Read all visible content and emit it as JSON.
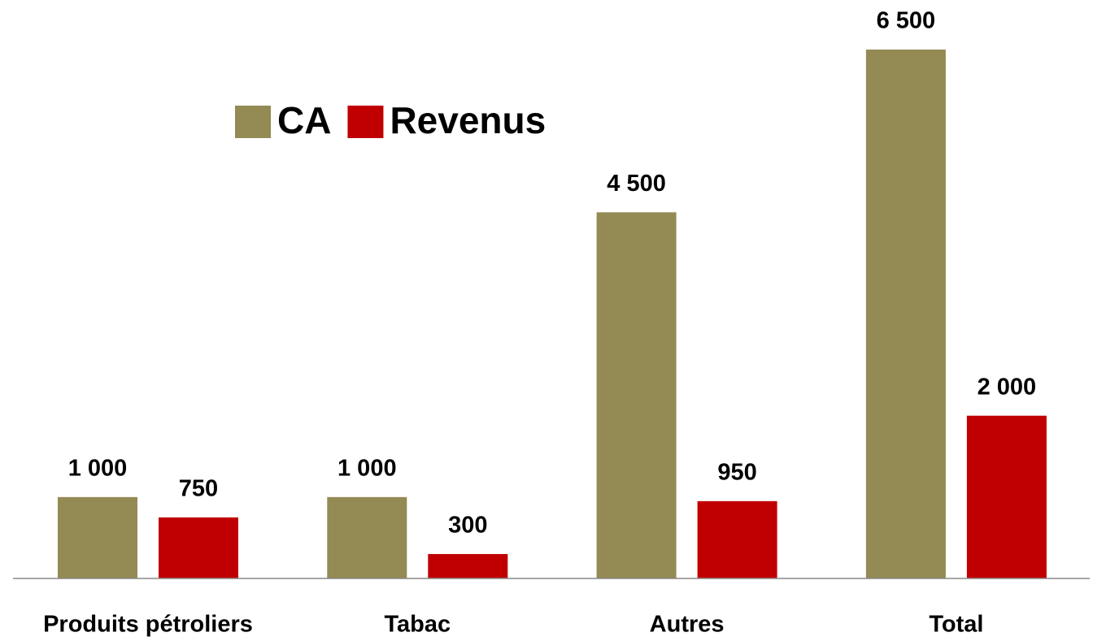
{
  "chart_data": {
    "type": "bar",
    "categories": [
      "Produits pétroliers",
      "Tabac",
      "Autres",
      "Total"
    ],
    "series": [
      {
        "name": "CA",
        "color": "#948a54",
        "values": [
          1000,
          1000,
          4500,
          6500
        ],
        "value_labels": [
          "1 000",
          "1 000",
          "4 500",
          "6 500"
        ]
      },
      {
        "name": "Revenus",
        "color": "#c00000",
        "values": [
          750,
          300,
          950,
          2000
        ],
        "value_labels": [
          "750",
          "300",
          "950",
          "2 000"
        ]
      }
    ],
    "ylim": [
      0,
      6500
    ],
    "legend": "top-left"
  }
}
